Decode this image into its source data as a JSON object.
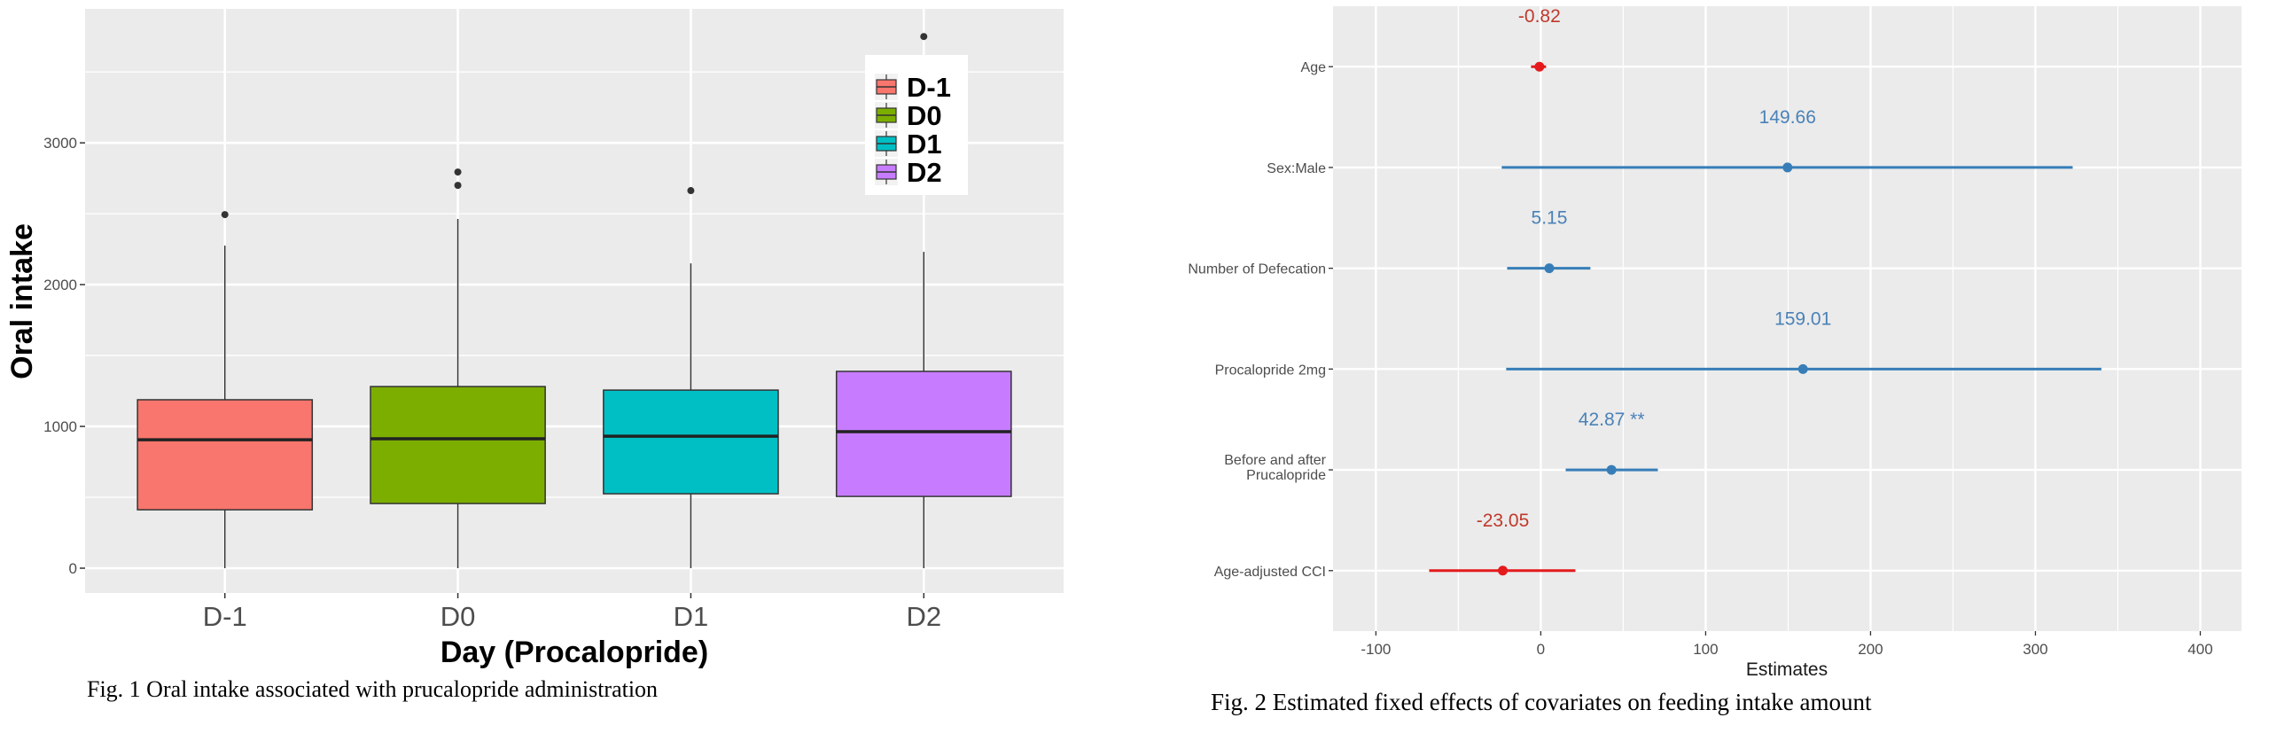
{
  "chart_data": [
    {
      "type": "boxplot",
      "title": "",
      "xlabel": "Day (Procalopride)",
      "ylabel": "Oral intake",
      "ylim": [
        -175,
        3945
      ],
      "yticks": [
        0,
        1000,
        2000,
        3000
      ],
      "ytick_labels": [
        "0",
        "1000",
        "2000",
        "3000"
      ],
      "grid": true,
      "categories": [
        "D-1",
        "D0",
        "D1",
        "D2"
      ],
      "colors": [
        "#F8766D",
        "#7CAE00",
        "#00BFC4",
        "#C77CFF"
      ],
      "boxes": [
        {
          "name": "D-1",
          "whisker_low": 0,
          "q1": 412,
          "median": 906,
          "q3": 1188,
          "whisker_high": 2275,
          "outliers": [
            2494
          ]
        },
        {
          "name": "D0",
          "whisker_low": 0,
          "q1": 456,
          "median": 913,
          "q3": 1281,
          "whisker_high": 2463,
          "outliers": [
            2700,
            2794
          ]
        },
        {
          "name": "D1",
          "whisker_low": 0,
          "q1": 525,
          "median": 931,
          "q3": 1256,
          "whisker_high": 2150,
          "outliers": [
            2663
          ]
        },
        {
          "name": "D2",
          "whisker_low": 0,
          "q1": 506,
          "median": 963,
          "q3": 1388,
          "whisker_high": 2231,
          "outliers": [
            3750
          ]
        }
      ],
      "legend": {
        "placement": "top-right (inside)",
        "entries": [
          "D-1",
          "D0",
          "D1",
          "D2"
        ]
      },
      "caption": "Fig. 1 Oral intake associated with prucalopride administration"
    },
    {
      "type": "forest",
      "title": "",
      "xlabel": "Estimates",
      "ylabel": "",
      "xlim": [
        -126,
        425
      ],
      "xticks": [
        -100,
        0,
        100,
        200,
        300,
        400
      ],
      "xtick_labels": [
        "-100",
        "0",
        "100",
        "200",
        "300",
        "400"
      ],
      "grid": true,
      "colors": {
        "positive": "#377EB8",
        "negative": "#E41A1C"
      },
      "terms": [
        {
          "label": "Age",
          "estimate": -0.82,
          "ci_low": -5.9,
          "ci_high": 3.2,
          "annotation": "-0.82",
          "sign": "negative"
        },
        {
          "label": "Sex:Male",
          "estimate": 149.66,
          "ci_low": -23.7,
          "ci_high": 322.6,
          "annotation": "149.66",
          "sign": "positive"
        },
        {
          "label": "Number of Defecation",
          "estimate": 5.15,
          "ci_low": -20.4,
          "ci_high": 30.1,
          "annotation": "5.15",
          "sign": "positive"
        },
        {
          "label": "Procalopride 2mg",
          "estimate": 159.01,
          "ci_low": -21.0,
          "ci_high": 340.0,
          "annotation": "159.01",
          "sign": "positive"
        },
        {
          "label": "Before and after\nPrucalopride",
          "label_lines": [
            "Before and after",
            "Prucalopride"
          ],
          "estimate": 42.87,
          "ci_low": 15.1,
          "ci_high": 71.0,
          "annotation": "42.87 **",
          "sign": "positive"
        },
        {
          "label": "Age-adjusted CCI",
          "estimate": -23.05,
          "ci_low": -67.7,
          "ci_high": 21.0,
          "annotation": "-23.05",
          "sign": "negative"
        }
      ],
      "caption": "Fig. 2 Estimated fixed effects of covariates on feeding intake amount"
    }
  ]
}
